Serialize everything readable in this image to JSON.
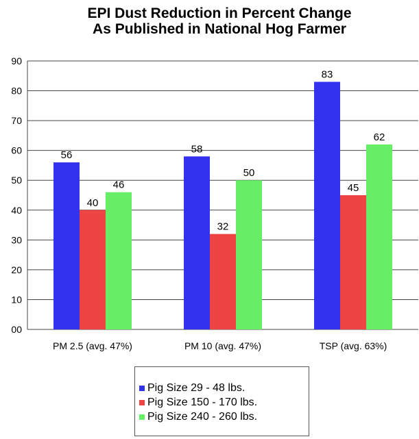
{
  "title_line1": "EPI Dust Reduction in Percent Change",
  "title_line2": "As Published in National Hog Farmer",
  "chart_data": {
    "type": "bar",
    "title": "EPI Dust Reduction in Percent Change As Published in National Hog Farmer",
    "categories": [
      "PM 2.5 (avg. 47%)",
      "PM 10 (avg. 47%)",
      "TSP (avg. 63%)"
    ],
    "series": [
      {
        "name": "Pig Size 29 - 48 lbs.",
        "color": "#3333ee",
        "values": [
          56,
          58,
          83
        ]
      },
      {
        "name": "Pig Size 150 - 170 lbs.",
        "color": "#ee4444",
        "values": [
          40,
          32,
          45
        ]
      },
      {
        "name": "Pig Size 240 - 260 lbs.",
        "color": "#66ee66",
        "values": [
          46,
          50,
          62
        ]
      }
    ],
    "ylim": [
      0,
      90
    ],
    "yticks": [
      "00",
      "10",
      "20",
      "30",
      "40",
      "50",
      "60",
      "70",
      "80",
      "90"
    ],
    "grid": "horizontal",
    "legend_position": "bottom"
  }
}
